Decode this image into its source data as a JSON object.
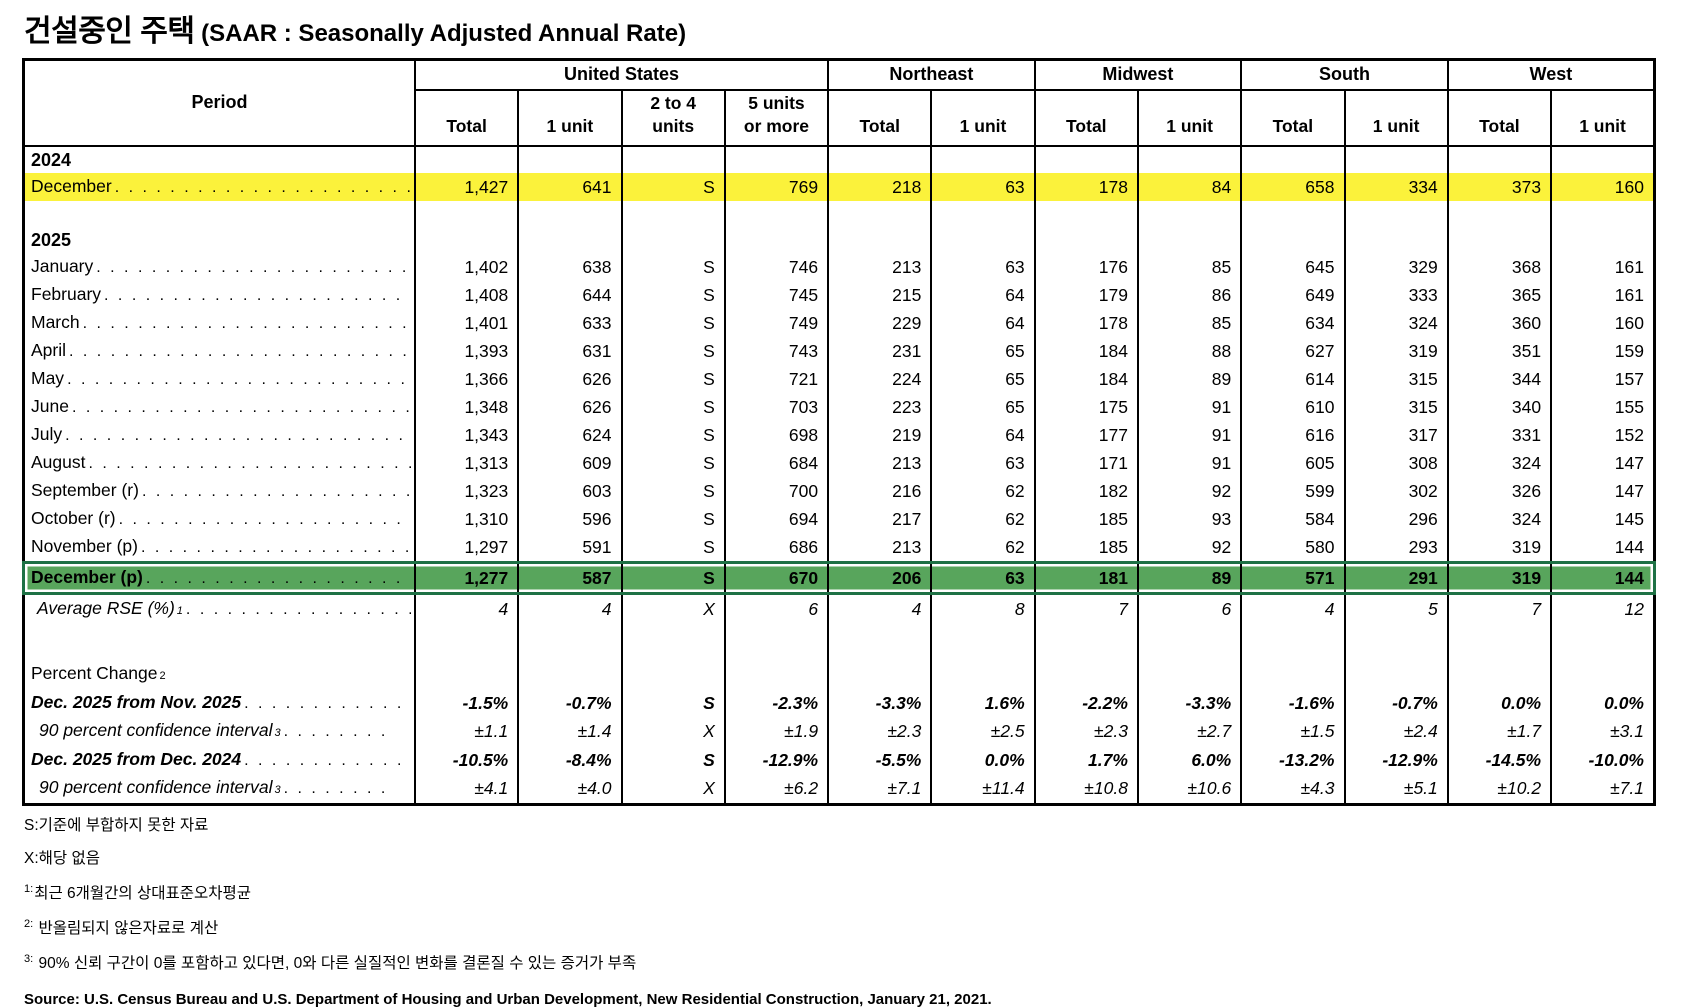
{
  "title": {
    "korean": "건설중인 주택",
    "english": "(SAAR : Seasonally Adjusted Annual Rate)"
  },
  "colors": {
    "highlight_yellow": "#FBF23B",
    "selection_green": "#58A55C",
    "selection_green_border": "#1E7145"
  },
  "table": {
    "period_header": "Period",
    "groups": [
      {
        "label": "United States",
        "span": 4
      },
      {
        "label": "Northeast",
        "span": 2
      },
      {
        "label": "Midwest",
        "span": 2
      },
      {
        "label": "South",
        "span": 2
      },
      {
        "label": "West",
        "span": 2
      }
    ],
    "sub_headers": [
      [
        "Total"
      ],
      [
        "1 unit"
      ],
      [
        "2 to 4",
        "units"
      ],
      [
        "5 units",
        "or more"
      ],
      [
        "Total"
      ],
      [
        "1 unit"
      ],
      [
        "Total"
      ],
      [
        "1 unit"
      ],
      [
        "Total"
      ],
      [
        "1 unit"
      ],
      [
        "Total"
      ],
      [
        "1 unit"
      ]
    ],
    "rows": [
      {
        "name": "row-year-2024",
        "cls": "year",
        "label": "2024",
        "leader": false
      },
      {
        "name": "row-december-2024",
        "cls": "data yellow",
        "label": "December",
        "leader": true,
        "cells": [
          "1,427",
          "641",
          "S",
          "769",
          "218",
          "63",
          "178",
          "84",
          "658",
          "334",
          "373",
          "160"
        ]
      },
      {
        "name": "row-spacer-1",
        "cls": "blank",
        "label": "",
        "leader": false
      },
      {
        "name": "row-year-2025",
        "cls": "year",
        "label": "2025",
        "leader": false
      },
      {
        "name": "row-january",
        "cls": "data",
        "label": "January",
        "leader": true,
        "cells": [
          "1,402",
          "638",
          "S",
          "746",
          "213",
          "63",
          "176",
          "85",
          "645",
          "329",
          "368",
          "161"
        ]
      },
      {
        "name": "row-february",
        "cls": "data",
        "label": "February",
        "leader": true,
        "cells": [
          "1,408",
          "644",
          "S",
          "745",
          "215",
          "64",
          "179",
          "86",
          "649",
          "333",
          "365",
          "161"
        ]
      },
      {
        "name": "row-march",
        "cls": "data",
        "label": "March",
        "leader": true,
        "cells": [
          "1,401",
          "633",
          "S",
          "749",
          "229",
          "64",
          "178",
          "85",
          "634",
          "324",
          "360",
          "160"
        ]
      },
      {
        "name": "row-april",
        "cls": "data",
        "label": "April",
        "leader": true,
        "cells": [
          "1,393",
          "631",
          "S",
          "743",
          "231",
          "65",
          "184",
          "88",
          "627",
          "319",
          "351",
          "159"
        ]
      },
      {
        "name": "row-may",
        "cls": "data",
        "label": "May",
        "leader": true,
        "cells": [
          "1,366",
          "626",
          "S",
          "721",
          "224",
          "65",
          "184",
          "89",
          "614",
          "315",
          "344",
          "157"
        ]
      },
      {
        "name": "row-june",
        "cls": "data",
        "label": "June",
        "leader": true,
        "cells": [
          "1,348",
          "626",
          "S",
          "703",
          "223",
          "65",
          "175",
          "91",
          "610",
          "315",
          "340",
          "155"
        ]
      },
      {
        "name": "row-july",
        "cls": "data",
        "label": "July",
        "leader": true,
        "cells": [
          "1,343",
          "624",
          "S",
          "698",
          "219",
          "64",
          "177",
          "91",
          "616",
          "317",
          "331",
          "152"
        ]
      },
      {
        "name": "row-august",
        "cls": "data",
        "label": "August",
        "leader": true,
        "cells": [
          "1,313",
          "609",
          "S",
          "684",
          "213",
          "63",
          "171",
          "91",
          "605",
          "308",
          "324",
          "147"
        ]
      },
      {
        "name": "row-september",
        "cls": "data",
        "label": "September (r)",
        "leader": true,
        "cells": [
          "1,323",
          "603",
          "S",
          "700",
          "216",
          "62",
          "182",
          "92",
          "599",
          "302",
          "326",
          "147"
        ]
      },
      {
        "name": "row-october",
        "cls": "data",
        "label": "October (r)",
        "leader": true,
        "cells": [
          "1,310",
          "596",
          "S",
          "694",
          "217",
          "62",
          "185",
          "93",
          "584",
          "296",
          "324",
          "145"
        ]
      },
      {
        "name": "row-november",
        "cls": "data",
        "label": "November (p)",
        "leader": true,
        "cells": [
          "1,297",
          "591",
          "S",
          "686",
          "213",
          "62",
          "185",
          "92",
          "580",
          "293",
          "319",
          "144"
        ]
      },
      {
        "name": "row-december-2025",
        "cls": "data green",
        "label": "December (p)",
        "leader": true,
        "cells": [
          "1,277",
          "587",
          "S",
          "670",
          "206",
          "63",
          "181",
          "89",
          "571",
          "291",
          "319",
          "144"
        ]
      },
      {
        "name": "row-average-rse",
        "cls": "rse",
        "label": "Average RSE (%)",
        "sup": "1",
        "leader": true,
        "cells": [
          "4",
          "4",
          "X",
          "6",
          "4",
          "8",
          "7",
          "6",
          "4",
          "5",
          "7",
          "12"
        ]
      },
      {
        "name": "row-spacer-2",
        "cls": "gap",
        "label": "",
        "leader": false
      },
      {
        "name": "row-percent-change",
        "cls": "section",
        "label": "Percent Change",
        "sup": "2",
        "leader": false
      },
      {
        "name": "row-change-from-nov-2025",
        "cls": "pct",
        "label": "Dec. 2025 from Nov. 2025",
        "leader": true,
        "cells": [
          "-1.5%",
          "-0.7%",
          "S",
          "-2.3%",
          "-3.3%",
          "1.6%",
          "-2.2%",
          "-3.3%",
          "-1.6%",
          "-0.7%",
          "0.0%",
          "0.0%"
        ]
      },
      {
        "name": "row-ci-nov",
        "cls": "ci",
        "label": "90 percent confidence interval",
        "sup": "3",
        "leader": true,
        "cells": [
          "±1.1",
          "±1.4",
          "X",
          "±1.9",
          "±2.3",
          "±2.5",
          "±2.3",
          "±2.7",
          "±1.5",
          "±2.4",
          "±1.7",
          "±3.1"
        ]
      },
      {
        "name": "row-change-from-dec-2024",
        "cls": "pct",
        "label": "Dec. 2025 from Dec. 2024",
        "leader": true,
        "cells": [
          "-10.5%",
          "-8.4%",
          "S",
          "-12.9%",
          "-5.5%",
          "0.0%",
          "1.7%",
          "6.0%",
          "-13.2%",
          "-12.9%",
          "-14.5%",
          "-10.0%"
        ]
      },
      {
        "name": "row-ci-dec",
        "cls": "ci",
        "label": "90 percent confidence interval",
        "sup": "3",
        "leader": true,
        "cells": [
          "±4.1",
          "±4.0",
          "X",
          "±6.2",
          "±7.1",
          "±11.4",
          "±10.8",
          "±10.6",
          "±4.3",
          "±5.1",
          "±10.2",
          "±7.1"
        ]
      }
    ]
  },
  "footnotes": [
    {
      "prefix": "S:",
      "text": "기준에 부합하지 못한 자료",
      "sup": false
    },
    {
      "prefix": "X:",
      "text": "해당 없음",
      "sup": false
    },
    {
      "prefix": "1:",
      "text": "최근 6개월간의 상대표준오차평균",
      "sup": true
    },
    {
      "prefix": "2:",
      "text": "반올림되지 않은자료로 계산",
      "sup": true
    },
    {
      "prefix": "3:",
      "text": "90% 신뢰 구간이 0를 포함하고 있다면, 0와 다른 실질적인 변화를 결론질 수 있는 증거가 부족",
      "sup": true
    }
  ],
  "source": "Source: U.S. Census Bureau and U.S. Department of Housing and Urban Development, New Residential Construction, January 21, 2021."
}
